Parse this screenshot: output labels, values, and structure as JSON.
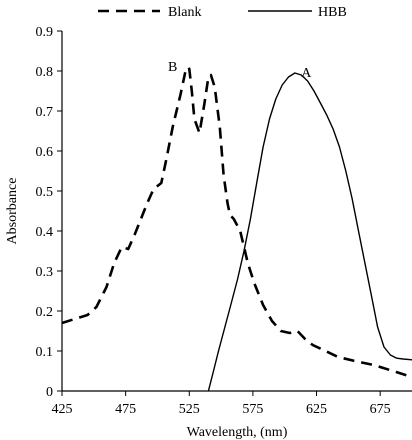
{
  "chart_data": {
    "type": "line",
    "xlabel": "Wavelength, (nm)",
    "ylabel": "Absorbance",
    "xlim": [
      425,
      700
    ],
    "ylim": [
      0,
      0.9
    ],
    "x_ticks": [
      425,
      475,
      525,
      575,
      625,
      675
    ],
    "y_ticks": [
      0,
      0.1,
      0.2,
      0.3,
      0.4,
      0.5,
      0.6,
      0.7,
      0.8,
      0.9
    ],
    "x_tick_labels": [
      "425",
      "475",
      "525",
      "575",
      "625",
      "675"
    ],
    "y_tick_labels": [
      "0",
      "0.1",
      "0.2",
      "0.3",
      "0.4",
      "0.5",
      "0.6",
      "0.7",
      "0.8",
      "0.9"
    ],
    "grid": false,
    "legend_position": "top",
    "annotations": [
      {
        "text": "B",
        "x": 512,
        "y": 0.8
      },
      {
        "text": "A",
        "x": 617,
        "y": 0.785
      }
    ],
    "series": [
      {
        "name": "Blank",
        "style": "dashed",
        "x": [
          425,
          435,
          445,
          452,
          460,
          466,
          472,
          477,
          482,
          487,
          492,
          497,
          503,
          507,
          512,
          518,
          522,
          524,
          525,
          527,
          529,
          533,
          537,
          540,
          542,
          545,
          549,
          552,
          555,
          557,
          560,
          565,
          571,
          576,
          583,
          590,
          597,
          604,
          610,
          616,
          622,
          632,
          642,
          655,
          670,
          685,
          700
        ],
        "values": [
          0.17,
          0.18,
          0.19,
          0.21,
          0.26,
          0.32,
          0.36,
          0.355,
          0.39,
          0.43,
          0.47,
          0.505,
          0.52,
          0.58,
          0.66,
          0.74,
          0.8,
          0.81,
          0.805,
          0.75,
          0.68,
          0.645,
          0.72,
          0.785,
          0.79,
          0.76,
          0.66,
          0.54,
          0.47,
          0.44,
          0.43,
          0.4,
          0.32,
          0.27,
          0.215,
          0.175,
          0.15,
          0.145,
          0.15,
          0.13,
          0.115,
          0.1,
          0.085,
          0.075,
          0.065,
          0.05,
          0.035
        ]
      },
      {
        "name": "HBB",
        "style": "solid",
        "x": [
          540,
          544,
          548,
          553,
          558,
          563,
          568,
          573,
          578,
          583,
          588,
          593,
          598,
          603,
          608,
          613,
          618,
          623,
          628,
          633,
          638,
          643,
          648,
          653,
          658,
          663,
          668,
          673,
          678,
          683,
          688,
          693,
          700
        ],
        "values": [
          0.0,
          0.05,
          0.1,
          0.16,
          0.22,
          0.28,
          0.35,
          0.43,
          0.52,
          0.61,
          0.68,
          0.73,
          0.765,
          0.785,
          0.795,
          0.79,
          0.775,
          0.75,
          0.72,
          0.69,
          0.655,
          0.61,
          0.55,
          0.48,
          0.4,
          0.32,
          0.24,
          0.16,
          0.11,
          0.09,
          0.082,
          0.08,
          0.078
        ]
      }
    ]
  }
}
